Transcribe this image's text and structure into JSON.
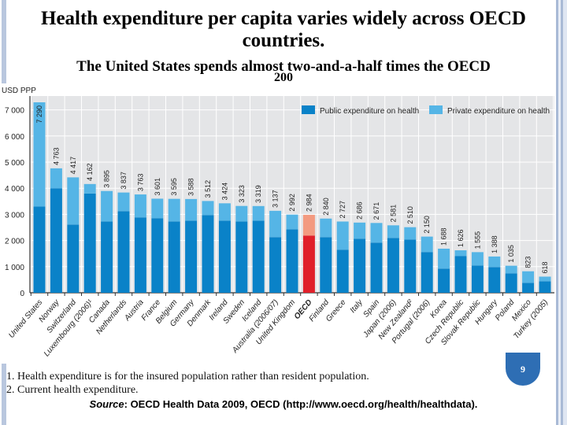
{
  "slide": {
    "title": "Health expenditure per capita varies widely across OECD countries.",
    "subtitle": "The United States spends almost two-and-a-half times the OECD",
    "subtitle_fragment": "200",
    "notes": [
      "1. Health expenditure is for the insured population rather than resident population.",
      "2. Current health expenditure."
    ],
    "source_label": "Source",
    "source_text": ": OECD Health Data 2009, OECD (http://www.oecd.org/health/healthdata).",
    "page_number": "9"
  },
  "chart_data": {
    "type": "bar",
    "stacked": true,
    "ylabel": "USD PPP",
    "ylim": [
      0,
      7500
    ],
    "yticks": [
      0,
      1000,
      2000,
      3000,
      4000,
      5000,
      6000,
      7000
    ],
    "ytick_labels": [
      "0",
      "1 000",
      "2 000",
      "3 000",
      "4 000",
      "5 000",
      "6 000",
      "7 000"
    ],
    "grid": true,
    "legend_position": "top-right",
    "categories": [
      "United States",
      "Norway",
      "Switzerland",
      "Luxembourg (2006)¹",
      "Canada",
      "Netherlands",
      "Austria",
      "France",
      "Belgium",
      "Germany",
      "Denmark",
      "Ireland",
      "Sweden",
      "Iceland",
      "Australia (2006/07)",
      "United Kingdom",
      "OECD",
      "Finland",
      "Greece",
      "Italy",
      "Spain",
      "Japan (2006)",
      "New Zealand²",
      "Portugal (2006)",
      "Korea",
      "Czech Republic",
      "Slovak Republic",
      "Hungary",
      "Poland",
      "Mexico",
      "Turkey (2005)"
    ],
    "total_labels": [
      "7 290",
      "4 763",
      "4 417",
      "4 162",
      "3 895",
      "3 837",
      "3 763",
      "3 601",
      "3 595",
      "3 588",
      "3 512",
      "3 424",
      "3 323",
      "3 319",
      "3 137",
      "2 992",
      "2 984",
      "2 840",
      "2 727",
      "2 686",
      "2 671",
      "2 581",
      "2 510",
      "2 150",
      "1 688",
      "1 626",
      "1 555",
      "1 388",
      "1 035",
      "823",
      "618"
    ],
    "totals": [
      7290,
      4763,
      4417,
      4162,
      3895,
      3837,
      3763,
      3601,
      3595,
      3588,
      3512,
      3424,
      3323,
      3319,
      3137,
      2992,
      2984,
      2840,
      2727,
      2686,
      2671,
      2581,
      2510,
      2150,
      1688,
      1626,
      1555,
      1388,
      1035,
      823,
      618
    ],
    "series": [
      {
        "name": "Public expenditure on health",
        "color": "#0a82c8",
        "values": [
          3300,
          4000,
          2610,
          3800,
          2730,
          3125,
          2885,
          2855,
          2730,
          2760,
          2975,
          2760,
          2730,
          2760,
          2130,
          2430,
          2190,
          2130,
          1650,
          2070,
          1920,
          2100,
          2040,
          1560,
          925,
          1410,
          1045,
          985,
          745,
          380,
          440
        ]
      },
      {
        "name": "Private expenditure on health",
        "color": "#55b5e6",
        "values": [
          3990,
          763,
          1807,
          362,
          1165,
          712,
          878,
          746,
          865,
          828,
          537,
          664,
          593,
          559,
          1007,
          562,
          794,
          710,
          1077,
          616,
          751,
          481,
          470,
          590,
          763,
          216,
          510,
          403,
          290,
          443,
          178
        ]
      }
    ],
    "highlight": {
      "category": "OECD",
      "public_color": "#e0202a",
      "private_color": "#f39a80"
    }
  }
}
